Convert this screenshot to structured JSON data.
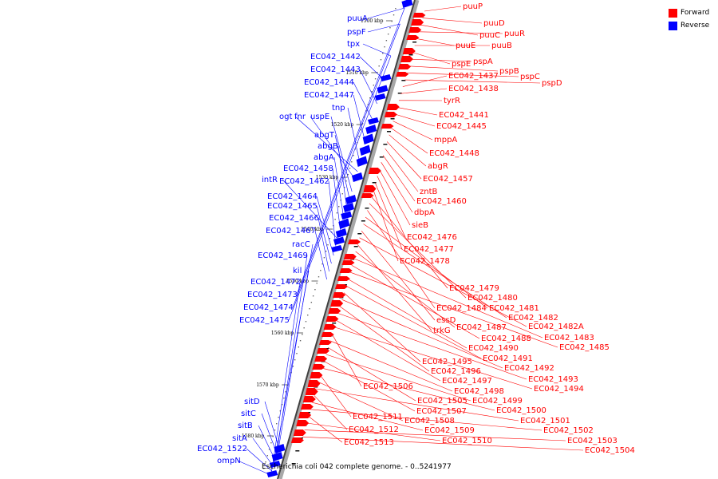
{
  "caption": "Escherichia coli 042 complete genome. - 0..5241977",
  "legend": {
    "forward": {
      "label": "Forward",
      "color": "#ff0000"
    },
    "reverse": {
      "label": "Reverse",
      "color": "#0000ff"
    }
  },
  "ticks": [
    "1500 kbp",
    "1510 kbp",
    "1520 kbp",
    "1530 kbp",
    "1540 kbp",
    "1550 kbp",
    "1560 kbp",
    "1570 kbp",
    "1580 kbp"
  ],
  "forward_labels": [
    "puuP",
    "puuD",
    "puuC",
    "puuR",
    "puuE",
    "puuB",
    "pspE",
    "pspA",
    "pspB",
    "pspC",
    "pspD",
    "EC042_1437",
    "EC042_1438",
    "tyrR",
    "EC042_1441",
    "EC042_1445",
    "mppA",
    "EC042_1448",
    "abgR",
    "EC042_1457",
    "zntB",
    "EC042_1460",
    "dbpA",
    "sieB",
    "EC042_1476",
    "EC042_1477",
    "EC042_1478",
    "EC042_1479",
    "EC042_1480",
    "EC042_1484",
    "EC042_1481",
    "EC042_1482",
    "essD",
    "EC042_1482A",
    "trkG",
    "EC042_1487",
    "EC042_1483",
    "EC042_1488",
    "EC042_1485",
    "EC042_1490",
    "EC042_1491",
    "EC042_1495",
    "EC042_1492",
    "EC042_1496",
    "EC042_1493",
    "EC042_1497",
    "EC042_1494",
    "EC042_1506",
    "EC042_1498",
    "EC042_1505",
    "EC042_1499",
    "EC042_1507",
    "EC042_1500",
    "EC042_1511",
    "EC042_1508",
    "EC042_1501",
    "EC042_1512",
    "EC042_1509",
    "EC042_1502",
    "EC042_1513",
    "EC042_1510",
    "EC042_1503",
    "EC042_1504"
  ],
  "reverse_labels": [
    "puuA",
    "pspF",
    "tpx",
    "EC042_1442",
    "EC042_1443",
    "EC042_1444",
    "EC042_1447",
    "tnp",
    "ogt",
    "fnr",
    "uspE",
    "abgT",
    "abgB",
    "abgA",
    "EC042_1458",
    "intR",
    "EC042_1462",
    "EC042_1464",
    "EC042_1465",
    "EC042_1466",
    "EC042_1467",
    "racC",
    "EC042_1469",
    "kil",
    "EC042_1472",
    "EC042_1473",
    "EC042_1474",
    "EC042_1475",
    "sitD",
    "sitC",
    "sitB",
    "sitA",
    "EC042_1522",
    "ompN"
  ]
}
